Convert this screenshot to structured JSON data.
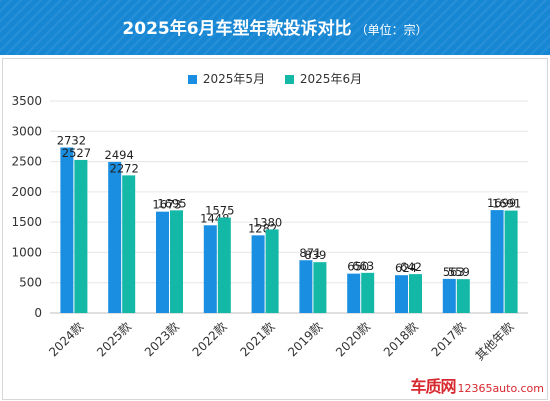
{
  "header": {
    "title": "2025年6月车型年款投诉对比",
    "unit": "（单位：宗）"
  },
  "colors": {
    "header_bg": "#1787d4",
    "series_may": "#1a8ee0",
    "series_june": "#13b9a6"
  },
  "chart_data": {
    "type": "bar",
    "title": "2025年6月车型年款投诉对比",
    "categories": [
      "2024款",
      "2025款",
      "2023款",
      "2022款",
      "2021款",
      "2019款",
      "2020款",
      "2018款",
      "2017款",
      "其他年款"
    ],
    "series": [
      {
        "name": "2025年5月",
        "color": "#1a8ee0",
        "values": [
          2732,
          2494,
          1673,
          1448,
          1282,
          871,
          650,
          624,
          563,
          1699
        ]
      },
      {
        "name": "2025年6月",
        "color": "#13b9a6",
        "values": [
          2527,
          2272,
          1695,
          1575,
          1380,
          839,
          663,
          642,
          559,
          1691
        ]
      }
    ],
    "ylim": [
      0,
      3500
    ],
    "yticks": [
      0,
      500,
      1000,
      1500,
      2000,
      2500,
      3000,
      3500
    ],
    "grid": true,
    "legend_position": "top-center",
    "data_labels": true
  },
  "watermark": {
    "logo": "车质网",
    "site": "12365auto.com"
  }
}
